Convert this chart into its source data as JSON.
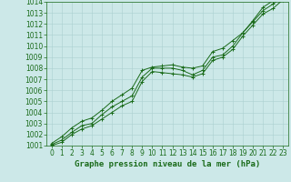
{
  "title": "Graphe pression niveau de la mer (hPa)",
  "x_hours": [
    0,
    1,
    2,
    3,
    4,
    5,
    6,
    7,
    8,
    9,
    10,
    11,
    12,
    13,
    14,
    15,
    16,
    17,
    18,
    19,
    20,
    21,
    22,
    23
  ],
  "line_avg": [
    1001.1,
    1001.5,
    1002.2,
    1002.8,
    1003.0,
    1003.8,
    1004.5,
    1005.0,
    1005.5,
    1007.2,
    1008.0,
    1008.0,
    1008.0,
    1007.8,
    1007.4,
    1007.8,
    1009.0,
    1009.2,
    1010.0,
    1011.2,
    1012.2,
    1013.2,
    1013.8,
    1014.5
  ],
  "line_max": [
    1001.2,
    1001.8,
    1002.6,
    1003.2,
    1003.5,
    1004.2,
    1005.0,
    1005.6,
    1006.2,
    1007.8,
    1008.1,
    1008.2,
    1008.3,
    1008.1,
    1008.0,
    1008.2,
    1009.5,
    1009.8,
    1010.5,
    1011.2,
    1012.3,
    1013.5,
    1014.1,
    1014.9
  ],
  "line_min": [
    1001.0,
    1001.3,
    1002.0,
    1002.5,
    1002.8,
    1003.4,
    1004.0,
    1004.6,
    1005.0,
    1006.8,
    1007.7,
    1007.6,
    1007.5,
    1007.4,
    1007.2,
    1007.5,
    1008.7,
    1009.0,
    1009.7,
    1010.9,
    1011.9,
    1012.9,
    1013.4,
    1014.2
  ],
  "line_color": "#1a6b1a",
  "background_color": "#cce8e8",
  "grid_color": "#aad0d0",
  "text_color": "#1a6b1a",
  "ylim": [
    1001,
    1014
  ],
  "ytick_step": 1,
  "xlim": [
    0,
    23
  ],
  "title_fontsize": 6.5,
  "tick_fontsize": 5.5
}
